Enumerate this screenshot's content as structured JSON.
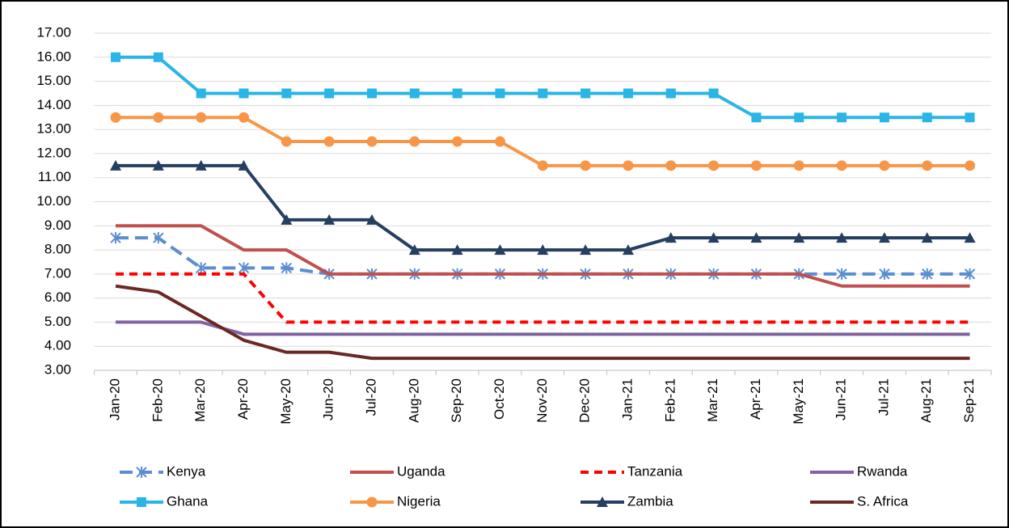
{
  "chart_data": {
    "type": "line",
    "categories": [
      "Jan-20",
      "Feb-20",
      "Mar-20",
      "Apr-20",
      "May-20",
      "Jun-20",
      "Jul-20",
      "Aug-20",
      "Sep-20",
      "Oct-20",
      "Nov-20",
      "Dec-20",
      "Jan-21",
      "Feb-21",
      "Mar-21",
      "Apr-21",
      "May-21",
      "Jun-21",
      "Jul-21",
      "Aug-21",
      "Sep-21"
    ],
    "ylim": [
      3,
      17
    ],
    "yticks": [
      {
        "value": 3,
        "label": "3.00"
      },
      {
        "value": 4,
        "label": "4.00"
      },
      {
        "value": 5,
        "label": "5.00"
      },
      {
        "value": 6,
        "label": "6.00"
      },
      {
        "value": 7,
        "label": "7.00"
      },
      {
        "value": 8,
        "label": "8.00"
      },
      {
        "value": 9,
        "label": "9.00"
      },
      {
        "value": 10,
        "label": "10.00"
      },
      {
        "value": 11,
        "label": "11.00"
      },
      {
        "value": 12,
        "label": "12.00"
      },
      {
        "value": 13,
        "label": "13.00"
      },
      {
        "value": 14,
        "label": "14.00"
      },
      {
        "value": 15,
        "label": "15.00"
      },
      {
        "value": 16,
        "label": "16.00"
      },
      {
        "value": 17,
        "label": "17.00"
      }
    ],
    "grid": true,
    "legend": "bottom",
    "series": [
      {
        "name": "Kenya",
        "color": "#5a8ed0",
        "dash": "long",
        "marker": "asterisk",
        "values": [
          8.5,
          8.5,
          7.25,
          7.25,
          7.25,
          7,
          7,
          7,
          7,
          7,
          7,
          7,
          7,
          7,
          7,
          7,
          7,
          7,
          7,
          7,
          7
        ]
      },
      {
        "name": "Uganda",
        "color": "#c0504d",
        "values": [
          9,
          9,
          9,
          8,
          8,
          7,
          7,
          7,
          7,
          7,
          7,
          7,
          7,
          7,
          7,
          7,
          7,
          6.5,
          6.5,
          6.5,
          6.5
        ]
      },
      {
        "name": "Tanzania",
        "color": "#ff0000",
        "dash": "short",
        "values": [
          7,
          7,
          7,
          7,
          5,
          5,
          5,
          5,
          5,
          5,
          5,
          5,
          5,
          5,
          5,
          5,
          5,
          5,
          5,
          5,
          5
        ]
      },
      {
        "name": "Rwanda",
        "color": "#8064a2",
        "values": [
          5,
          5,
          5,
          4.5,
          4.5,
          4.5,
          4.5,
          4.5,
          4.5,
          4.5,
          4.5,
          4.5,
          4.5,
          4.5,
          4.5,
          4.5,
          4.5,
          4.5,
          4.5,
          4.5,
          4.5
        ]
      },
      {
        "name": "Ghana",
        "color": "#29b5e6",
        "marker": "square",
        "values": [
          16,
          16,
          14.5,
          14.5,
          14.5,
          14.5,
          14.5,
          14.5,
          14.5,
          14.5,
          14.5,
          14.5,
          14.5,
          14.5,
          14.5,
          13.5,
          13.5,
          13.5,
          13.5,
          13.5,
          13.5
        ]
      },
      {
        "name": "Nigeria",
        "color": "#f79646",
        "marker": "circle",
        "values": [
          13.5,
          13.5,
          13.5,
          13.5,
          12.5,
          12.5,
          12.5,
          12.5,
          12.5,
          12.5,
          11.5,
          11.5,
          11.5,
          11.5,
          11.5,
          11.5,
          11.5,
          11.5,
          11.5,
          11.5,
          11.5
        ]
      },
      {
        "name": "Zambia",
        "color": "#243f60",
        "marker": "triangle",
        "values": [
          11.5,
          11.5,
          11.5,
          11.5,
          9.25,
          9.25,
          9.25,
          8,
          8,
          8,
          8,
          8,
          8,
          8.5,
          8.5,
          8.5,
          8.5,
          8.5,
          8.5,
          8.5,
          8.5
        ]
      },
      {
        "name": "S. Africa",
        "color": "#6b2824",
        "values": [
          6.5,
          6.25,
          5.25,
          4.25,
          3.75,
          3.75,
          3.5,
          3.5,
          3.5,
          3.5,
          3.5,
          3.5,
          3.5,
          3.5,
          3.5,
          3.5,
          3.5,
          3.5,
          3.5,
          3.5,
          3.5
        ]
      }
    ]
  }
}
